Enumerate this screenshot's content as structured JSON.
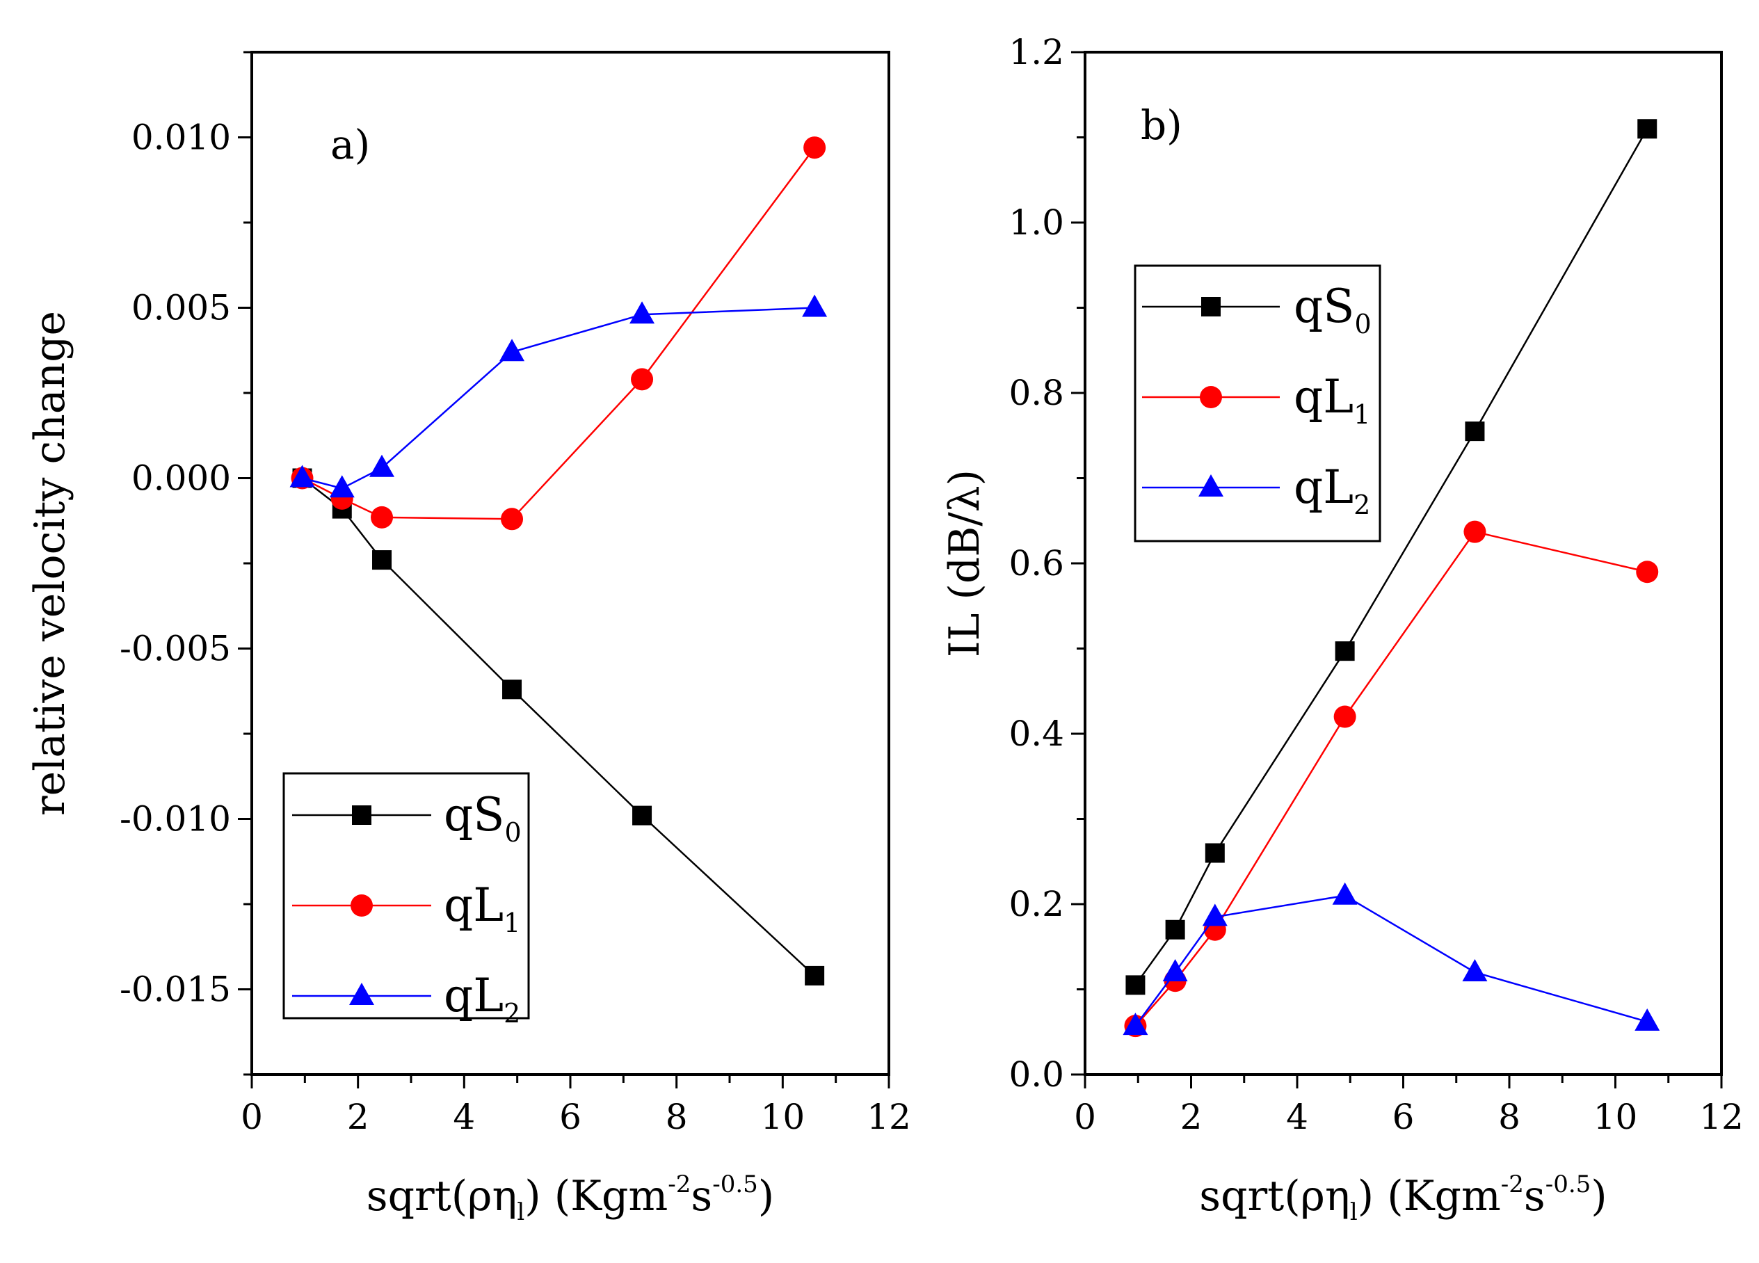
{
  "chart_data": [
    {
      "panel": "a",
      "type": "line",
      "panel_label": "a)",
      "xlabel": {
        "base": "sqrt(ρη",
        "sub": "l",
        "mid": ") (Kgm",
        "sup1": "-2",
        "s": "s",
        "sup2": "-0.5",
        "end": ")"
      },
      "ylabel": "relative velocity change",
      "xlim": [
        0,
        12
      ],
      "ylim": [
        -0.0175,
        0.0125
      ],
      "xticks": [
        0,
        2,
        4,
        6,
        8,
        10,
        12
      ],
      "xtick_labels": [
        "0",
        "2",
        "4",
        "6",
        "8",
        "10",
        "12"
      ],
      "yticks": [
        -0.015,
        -0.01,
        -0.005,
        0.0,
        0.005,
        0.01
      ],
      "ytick_labels": [
        "-0.015",
        "-0.010",
        "-0.005",
        "0.000",
        "0.005",
        "0.010"
      ],
      "legend_position": "bottom-left",
      "series": [
        {
          "name": "qS",
          "sub": "0",
          "color": "#000000",
          "marker": "square",
          "x": [
            0.95,
            1.7,
            2.45,
            4.9,
            7.35,
            10.6
          ],
          "y": [
            0.0,
            -0.0009,
            -0.0024,
            -0.0062,
            -0.0099,
            -0.0146
          ]
        },
        {
          "name": "qL",
          "sub": "1",
          "color": "#ff0000",
          "marker": "circle",
          "x": [
            0.95,
            1.7,
            2.45,
            4.9,
            7.35,
            10.6
          ],
          "y": [
            0.0,
            -0.0006,
            -0.00115,
            -0.0012,
            0.0029,
            0.0097
          ]
        },
        {
          "name": "qL",
          "sub": "2",
          "color": "#0000ff",
          "marker": "triangle",
          "x": [
            0.95,
            1.7,
            2.45,
            4.9,
            7.35,
            10.6
          ],
          "y": [
            0.0,
            -0.0003,
            0.0003,
            0.0037,
            0.0048,
            0.005
          ]
        }
      ]
    },
    {
      "panel": "b",
      "type": "line",
      "panel_label": "b)",
      "xlabel": {
        "base": "sqrt(ρη",
        "sub": "l",
        "mid": ") (Kgm",
        "sup1": "-2",
        "s": "s",
        "sup2": "-0.5",
        "end": ")"
      },
      "ylabel": "IL (dB/λ)",
      "xlim": [
        0,
        12
      ],
      "ylim": [
        0,
        1.2
      ],
      "xticks": [
        0,
        2,
        4,
        6,
        8,
        10,
        12
      ],
      "xtick_labels": [
        "0",
        "2",
        "4",
        "6",
        "8",
        "10",
        "12"
      ],
      "yticks": [
        0.0,
        0.2,
        0.4,
        0.6,
        0.8,
        1.0,
        1.2
      ],
      "ytick_labels": [
        "0.0",
        "0.2",
        "0.4",
        "0.6",
        "0.8",
        "1.0",
        "1.2"
      ],
      "legend_position": "top-left",
      "series": [
        {
          "name": "qS",
          "sub": "0",
          "color": "#000000",
          "marker": "square",
          "x": [
            0.95,
            1.7,
            2.45,
            4.9,
            7.35,
            10.6
          ],
          "y": [
            0.105,
            0.17,
            0.26,
            0.497,
            0.755,
            1.11
          ]
        },
        {
          "name": "qL",
          "sub": "1",
          "color": "#ff0000",
          "marker": "circle",
          "x": [
            0.95,
            1.7,
            2.45,
            4.9,
            7.35,
            10.6
          ],
          "y": [
            0.057,
            0.11,
            0.17,
            0.42,
            0.637,
            0.59
          ]
        },
        {
          "name": "qL",
          "sub": "2",
          "color": "#0000ff",
          "marker": "triangle",
          "x": [
            0.95,
            1.7,
            2.45,
            4.9,
            7.35,
            10.6
          ],
          "y": [
            0.057,
            0.12,
            0.185,
            0.21,
            0.12,
            0.062
          ]
        }
      ]
    }
  ]
}
